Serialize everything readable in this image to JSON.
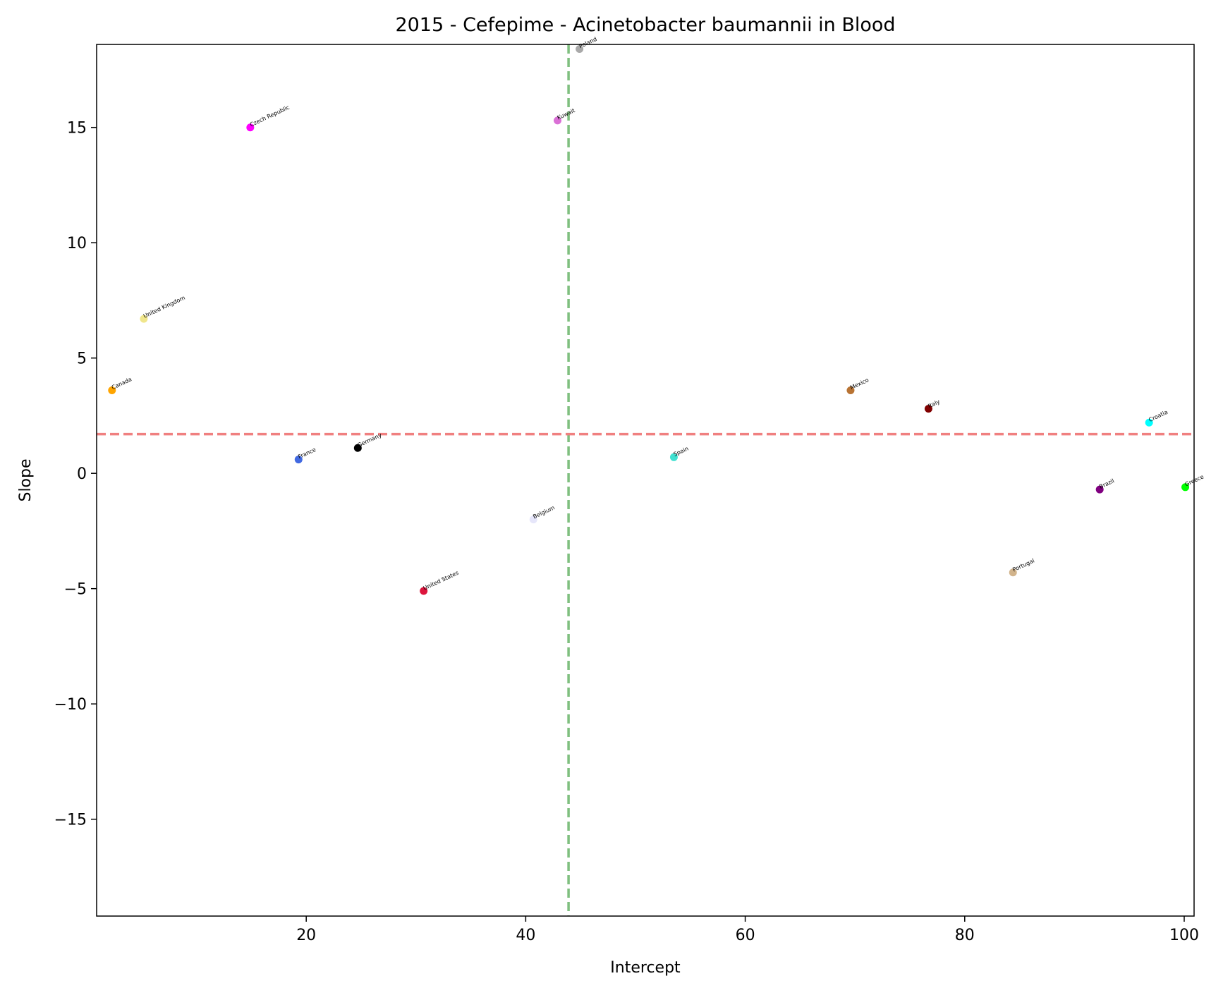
{
  "chart_data": {
    "type": "scatter",
    "title": "2015 - Cefepime - Acinetobacter baumannii in Blood",
    "xlabel": "Intercept",
    "ylabel": "Slope",
    "xlim": [
      0.9,
      100.9
    ],
    "ylim": [
      -19.2,
      18.6
    ],
    "x_ticks": [
      20,
      40,
      60,
      80,
      100
    ],
    "x_tick_labels": [
      "20",
      "40",
      "60",
      "80",
      "100"
    ],
    "y_ticks": [
      -15,
      -10,
      -5,
      0,
      5,
      10,
      15
    ],
    "y_tick_labels": [
      "−15",
      "−10",
      "−5",
      "0",
      "5",
      "10",
      "15"
    ],
    "grid": false,
    "reference_lines": [
      {
        "orientation": "vertical",
        "value": 43.9,
        "color": "#7fbf7f",
        "style": "dashed"
      },
      {
        "orientation": "horizontal",
        "value": 1.7,
        "color": "#f08080",
        "style": "dashed"
      }
    ],
    "points": [
      {
        "label": "Poland",
        "x": 44.9,
        "y": 18.4,
        "color": "#a9a9a9"
      },
      {
        "label": "Czech Republic",
        "x": 14.9,
        "y": 15.0,
        "color": "#ff00ff"
      },
      {
        "label": "Kuwait",
        "x": 42.9,
        "y": 15.3,
        "color": "#da70d6"
      },
      {
        "label": "United Kingdom",
        "x": 5.2,
        "y": 6.7,
        "color": "#f0e68c"
      },
      {
        "label": "Canada",
        "x": 2.3,
        "y": 3.6,
        "color": "#ffa500"
      },
      {
        "label": "Mexico",
        "x": 69.6,
        "y": 3.6,
        "color": "#b87333"
      },
      {
        "label": "Italy",
        "x": 76.7,
        "y": 2.8,
        "color": "#800000"
      },
      {
        "label": "Croatia",
        "x": 96.8,
        "y": 2.2,
        "color": "#00ffff"
      },
      {
        "label": "Germany",
        "x": 24.7,
        "y": 1.1,
        "color": "#000000"
      },
      {
        "label": "France",
        "x": 19.3,
        "y": 0.6,
        "color": "#4169e1"
      },
      {
        "label": "Spain",
        "x": 53.5,
        "y": 0.7,
        "color": "#40e0d0"
      },
      {
        "label": "Greece",
        "x": 100.1,
        "y": -0.6,
        "color": "#00ff00"
      },
      {
        "label": "Brazil",
        "x": 92.3,
        "y": -0.7,
        "color": "#800080"
      },
      {
        "label": "Belgium",
        "x": 40.7,
        "y": -2.0,
        "color": "#e6e6fa"
      },
      {
        "label": "Portugal",
        "x": 84.4,
        "y": -4.3,
        "color": "#d2b48c"
      },
      {
        "label": "United States",
        "x": 30.7,
        "y": -5.1,
        "color": "#dc143c"
      }
    ]
  }
}
